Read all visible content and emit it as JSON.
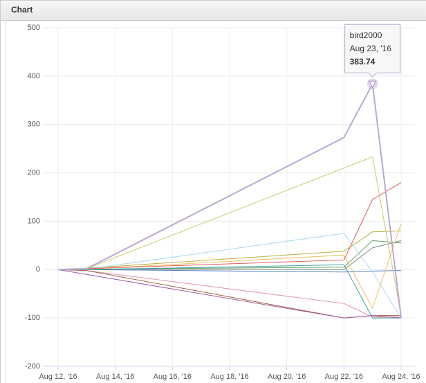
{
  "header": {
    "title": "Chart"
  },
  "chart_data": {
    "type": "line",
    "x": [
      "Aug 12, '16",
      "Aug 13, '16",
      "Aug 22, '16",
      "Aug 23, '16",
      "Aug 24, '16"
    ],
    "xlim": [
      "Aug 12, '16",
      "Aug 24, '16"
    ],
    "xticks": [
      "Aug 12, '16",
      "Aug 14, '16",
      "Aug 16, '16",
      "Aug 18, '16",
      "Aug 20, '16",
      "Aug 22, '16",
      "Aug 24, '16"
    ],
    "ylim": [
      -200,
      500
    ],
    "yticks": [
      -200,
      -100,
      0,
      100,
      200,
      300,
      400,
      500
    ],
    "grid": true,
    "series": [
      {
        "name": "bird2000",
        "color": "#bba8d4",
        "values": [
          0,
          2,
          273,
          383.74,
          -100
        ]
      },
      {
        "color": "#c4cc66",
        "values": [
          0,
          2,
          210,
          233,
          -95
        ]
      },
      {
        "color": "#e05a5a",
        "values": [
          0,
          2,
          20,
          145,
          180
        ]
      },
      {
        "color": "#9a5aa0",
        "values": [
          0,
          -10,
          -100,
          -95,
          -100
        ]
      },
      {
        "color": "#a8d8ea",
        "values": [
          0,
          1,
          75,
          -5,
          -100
        ]
      },
      {
        "color": "#b8b040",
        "values": [
          0,
          3,
          38,
          78,
          80
        ]
      },
      {
        "color": "#f0c060",
        "values": [
          0,
          1,
          30,
          -80,
          95
        ]
      },
      {
        "color": "#40a0a0",
        "values": [
          0,
          0,
          10,
          -100,
          -100
        ]
      },
      {
        "color": "#a06040",
        "values": [
          0,
          -2,
          -100,
          -95,
          -95
        ]
      },
      {
        "color": "#60a060",
        "values": [
          0,
          1,
          5,
          60,
          55
        ]
      },
      {
        "color": "#808890",
        "values": [
          0,
          1,
          0,
          45,
          60
        ]
      },
      {
        "color": "#e090b0",
        "values": [
          0,
          -2,
          -70,
          -98,
          -98
        ]
      },
      {
        "color": "#5080c0",
        "values": [
          0,
          0,
          -5,
          -3,
          -2
        ]
      }
    ],
    "tooltip": {
      "series": 0,
      "index": 3
    }
  }
}
